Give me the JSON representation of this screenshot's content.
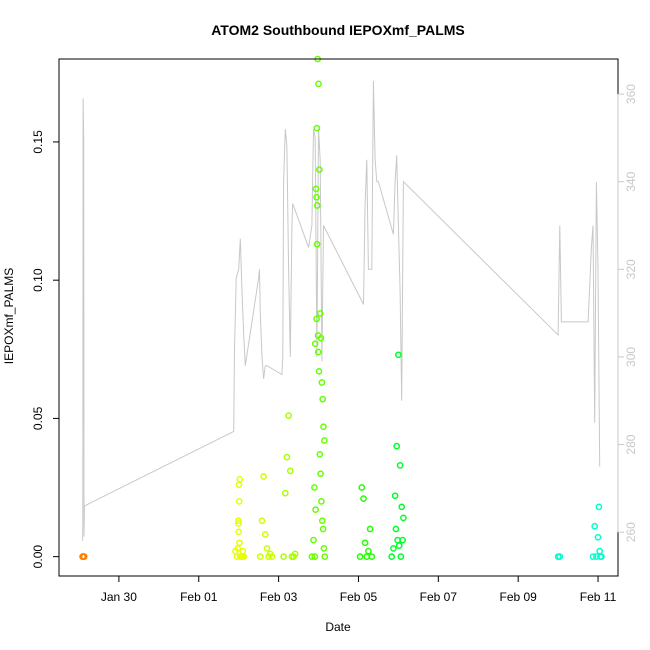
{
  "chart_data": {
    "type": "scatter",
    "title": "ATOM2 Southbound IEPOXmf_PALMS",
    "xlabel": "Date",
    "ylabel": "IEPOXmf_PALMS",
    "x_axis": {
      "type": "date",
      "range": [
        "2017-01-28T12:00",
        "2017-02-11T12:00"
      ],
      "ticks": [
        {
          "label": "Jan 30",
          "date": "2017-01-30"
        },
        {
          "label": "Feb 01",
          "date": "2017-02-01"
        },
        {
          "label": "Feb 03",
          "date": "2017-02-03"
        },
        {
          "label": "Feb 05",
          "date": "2017-02-05"
        },
        {
          "label": "Feb 07",
          "date": "2017-02-07"
        },
        {
          "label": "Feb 09",
          "date": "2017-02-09"
        },
        {
          "label": "Feb 11",
          "date": "2017-02-11"
        }
      ]
    },
    "y_axis": {
      "range": [
        -0.007,
        0.18
      ],
      "ticks": [
        {
          "label": "0.00",
          "value": 0.0
        },
        {
          "label": "0.05",
          "value": 0.05
        },
        {
          "label": "0.10",
          "value": 0.1
        },
        {
          "label": "0.15",
          "value": 0.15
        }
      ]
    },
    "y2_axis": {
      "range": [
        250,
        368
      ],
      "color": "#c8c8c8",
      "ticks": [
        {
          "label": "260",
          "value": 260
        },
        {
          "label": "280",
          "value": 280
        },
        {
          "label": "300",
          "value": 300
        },
        {
          "label": "320",
          "value": 320
        },
        {
          "label": "340",
          "value": 340
        },
        {
          "label": "360",
          "value": 360
        }
      ]
    },
    "grid": false,
    "line_series": {
      "axis": "right",
      "color": "#c8c8c8",
      "points": [
        [
          "2017-01-29T02:10",
          258
        ],
        [
          "2017-01-29T02:20",
          262
        ],
        [
          "2017-01-29T02:30",
          359
        ],
        [
          "2017-01-29T02:40",
          354
        ],
        [
          "2017-01-29T02:50",
          350
        ],
        [
          "2017-01-29T03:00",
          259
        ],
        [
          "2017-01-29T03:20",
          266
        ],
        [
          "2017-02-01T21:00",
          283
        ],
        [
          "2017-02-01T21:30",
          302
        ],
        [
          "2017-02-01T22:00",
          310
        ],
        [
          "2017-02-01T22:30",
          318
        ],
        [
          "2017-02-02T00:00",
          320
        ],
        [
          "2017-02-02T01:00",
          327
        ],
        [
          "2017-02-02T02:00",
          315
        ],
        [
          "2017-02-02T03:00",
          305
        ],
        [
          "2017-02-02T04:00",
          298
        ],
        [
          "2017-02-02T12:00",
          318
        ],
        [
          "2017-02-02T12:30",
          320
        ],
        [
          "2017-02-02T13:00",
          310
        ],
        [
          "2017-02-02T14:00",
          300
        ],
        [
          "2017-02-02T15:00",
          295
        ],
        [
          "2017-02-02T16:00",
          298
        ],
        [
          "2017-02-02T17:00",
          298
        ],
        [
          "2017-02-03T02:00",
          296
        ],
        [
          "2017-02-03T02:30",
          300
        ],
        [
          "2017-02-03T03:00",
          340
        ],
        [
          "2017-02-03T04:00",
          352
        ],
        [
          "2017-02-03T05:00",
          348
        ],
        [
          "2017-02-03T06:00",
          320
        ],
        [
          "2017-02-03T07:00",
          300
        ],
        [
          "2017-02-03T08:00",
          330
        ],
        [
          "2017-02-03T08:30",
          335
        ],
        [
          "2017-02-03T18:00",
          325
        ],
        [
          "2017-02-03T20:00",
          330
        ],
        [
          "2017-02-03T21:00",
          352
        ],
        [
          "2017-02-03T22:00",
          350
        ],
        [
          "2017-02-03T23:00",
          300
        ],
        [
          "2017-02-04T00:00",
          352
        ],
        [
          "2017-02-04T01:00",
          345
        ],
        [
          "2017-02-04T02:00",
          299
        ],
        [
          "2017-02-04T03:00",
          330
        ],
        [
          "2017-02-05T03:00",
          312
        ],
        [
          "2017-02-05T04:00",
          335
        ],
        [
          "2017-02-05T05:00",
          345
        ],
        [
          "2017-02-05T06:00",
          320
        ],
        [
          "2017-02-05T08:00",
          320
        ],
        [
          "2017-02-05T09:00",
          363
        ],
        [
          "2017-02-05T10:00",
          345
        ],
        [
          "2017-02-05T11:00",
          340
        ],
        [
          "2017-02-05T12:00",
          340
        ],
        [
          "2017-02-05T21:00",
          328
        ],
        [
          "2017-02-05T22:00",
          340
        ],
        [
          "2017-02-05T23:00",
          346
        ],
        [
          "2017-02-06T00:00",
          330
        ],
        [
          "2017-02-06T01:00",
          315
        ],
        [
          "2017-02-06T02:00",
          290
        ],
        [
          "2017-02-06T03:00",
          340
        ],
        [
          "2017-02-10T00:00",
          305
        ],
        [
          "2017-02-10T01:00",
          330
        ],
        [
          "2017-02-10T02:00",
          308
        ],
        [
          "2017-02-10T03:00",
          308
        ],
        [
          "2017-02-10T18:00",
          308
        ],
        [
          "2017-02-10T20:00",
          325
        ],
        [
          "2017-02-10T21:00",
          330
        ],
        [
          "2017-02-10T22:00",
          285
        ],
        [
          "2017-02-10T23:00",
          340
        ],
        [
          "2017-02-11T00:00",
          320
        ],
        [
          "2017-02-11T01:00",
          275
        ]
      ]
    },
    "scatter_series": {
      "axis": "left",
      "marker": "open-circle",
      "groups": [
        {
          "color": "#ff7f00",
          "points": [
            [
              "2017-01-29T02:10",
              0.0
            ],
            [
              "2017-01-29T02:25",
              0.0
            ],
            [
              "2017-01-29T02:40",
              0.0
            ],
            [
              "2017-01-29T02:55",
              0.0
            ],
            [
              "2017-01-29T03:10",
              0.0
            ]
          ]
        },
        {
          "color": "#e6ff00",
          "points": [
            [
              "2017-02-01T23:00",
              0.0
            ],
            [
              "2017-02-01T23:30",
              0.003
            ],
            [
              "2017-02-02T00:00",
              0.009
            ],
            [
              "2017-02-02T00:10",
              0.026
            ],
            [
              "2017-02-02T00:20",
              0.02
            ],
            [
              "2017-02-02T00:40",
              0.028
            ],
            [
              "2017-02-01T22:00",
              0.002
            ],
            [
              "2017-02-02T01:00",
              0.0
            ],
            [
              "2017-02-02T02:00",
              0.0
            ],
            [
              "2017-02-02T03:00",
              0.0
            ],
            [
              "2017-02-01T23:45",
              0.013
            ],
            [
              "2017-02-01T23:50",
              0.012
            ],
            [
              "2017-02-02T00:30",
              0.005
            ],
            [
              "2017-02-02T02:30",
              0.002
            ]
          ]
        },
        {
          "color": "#ccff00",
          "points": [
            [
              "2017-02-02T13:00",
              0.0
            ],
            [
              "2017-02-02T14:00",
              0.013
            ],
            [
              "2017-02-02T15:00",
              0.029
            ],
            [
              "2017-02-02T16:00",
              0.008
            ],
            [
              "2017-02-02T17:00",
              0.003
            ],
            [
              "2017-02-02T18:00",
              0.0
            ],
            [
              "2017-02-02T19:00",
              0.001
            ],
            [
              "2017-02-02T20:00",
              0.0
            ]
          ]
        },
        {
          "color": "#a8ff00",
          "points": [
            [
              "2017-02-03T03:00",
              0.0
            ],
            [
              "2017-02-03T04:00",
              0.023
            ],
            [
              "2017-02-03T05:00",
              0.036
            ],
            [
              "2017-02-03T06:00",
              0.051
            ],
            [
              "2017-02-03T07:00",
              0.031
            ],
            [
              "2017-02-03T08:00",
              0.0
            ],
            [
              "2017-02-03T09:00",
              0.0
            ],
            [
              "2017-02-03T10:00",
              0.001
            ]
          ]
        },
        {
          "color": "#66ff00",
          "points": [
            [
              "2017-02-03T20:00",
              0.0
            ],
            [
              "2017-02-03T21:00",
              0.006
            ],
            [
              "2017-02-03T21:30",
              0.025
            ],
            [
              "2017-02-03T22:00",
              0.077
            ],
            [
              "2017-02-03T22:30",
              0.133
            ],
            [
              "2017-02-03T23:00",
              0.155
            ],
            [
              "2017-02-03T23:30",
              0.18
            ],
            [
              "2017-02-04T00:00",
              0.171
            ],
            [
              "2017-02-04T00:30",
              0.14
            ],
            [
              "2017-02-04T01:00",
              0.088
            ],
            [
              "2017-02-04T01:30",
              0.079
            ],
            [
              "2017-02-04T02:00",
              0.063
            ],
            [
              "2017-02-04T02:30",
              0.057
            ],
            [
              "2017-02-04T03:00",
              0.047
            ],
            [
              "2017-02-04T03:30",
              0.042
            ],
            [
              "2017-02-03T22:45",
              0.13
            ],
            [
              "2017-02-03T23:15",
              0.127
            ],
            [
              "2017-02-03T23:45",
              0.08
            ],
            [
              "2017-02-03T23:50",
              0.074
            ],
            [
              "2017-02-04T00:15",
              0.067
            ],
            [
              "2017-02-04T00:45",
              0.037
            ],
            [
              "2017-02-04T01:15",
              0.03
            ],
            [
              "2017-02-04T01:45",
              0.02
            ],
            [
              "2017-02-04T02:15",
              0.013
            ],
            [
              "2017-02-04T02:45",
              0.01
            ],
            [
              "2017-02-04T03:15",
              0.003
            ],
            [
              "2017-02-04T03:45",
              0.0
            ],
            [
              "2017-02-03T21:45",
              0.0
            ],
            [
              "2017-02-03T22:15",
              0.017
            ],
            [
              "2017-02-03T22:50",
              0.086
            ],
            [
              "2017-02-03T23:10",
              0.113
            ]
          ]
        },
        {
          "color": "#22ff00",
          "points": [
            [
              "2017-02-05T01:00",
              0.0
            ],
            [
              "2017-02-05T02:00",
              0.025
            ],
            [
              "2017-02-05T03:00",
              0.021
            ],
            [
              "2017-02-05T04:00",
              0.005
            ],
            [
              "2017-02-05T05:00",
              0.0
            ],
            [
              "2017-02-05T06:00",
              0.002
            ],
            [
              "2017-02-05T07:00",
              0.01
            ],
            [
              "2017-02-05T08:00",
              0.0
            ]
          ]
        },
        {
          "color": "#00ff2a",
          "points": [
            [
              "2017-02-05T20:00",
              0.0
            ],
            [
              "2017-02-05T21:00",
              0.003
            ],
            [
              "2017-02-05T22:00",
              0.022
            ],
            [
              "2017-02-05T23:00",
              0.04
            ],
            [
              "2017-02-06T00:00",
              0.073
            ],
            [
              "2017-02-06T01:00",
              0.033
            ],
            [
              "2017-02-06T02:00",
              0.018
            ],
            [
              "2017-02-06T03:00",
              0.014
            ],
            [
              "2017-02-05T22:30",
              0.01
            ],
            [
              "2017-02-05T23:30",
              0.006
            ],
            [
              "2017-02-06T00:30",
              0.004
            ],
            [
              "2017-02-06T01:30",
              0.0
            ],
            [
              "2017-02-06T02:30",
              0.006
            ]
          ]
        },
        {
          "color": "#00ffcc",
          "points": [
            [
              "2017-02-10T00:00",
              0.0
            ],
            [
              "2017-02-10T01:00",
              0.0
            ],
            [
              "2017-02-10T21:00",
              0.0
            ],
            [
              "2017-02-10T22:00",
              0.011
            ],
            [
              "2017-02-10T23:00",
              0.0
            ],
            [
              "2017-02-11T00:00",
              0.007
            ],
            [
              "2017-02-11T00:30",
              0.018
            ],
            [
              "2017-02-11T01:00",
              0.002
            ],
            [
              "2017-02-11T01:30",
              0.0
            ],
            [
              "2017-02-11T02:00",
              0.0
            ]
          ]
        }
      ]
    }
  }
}
